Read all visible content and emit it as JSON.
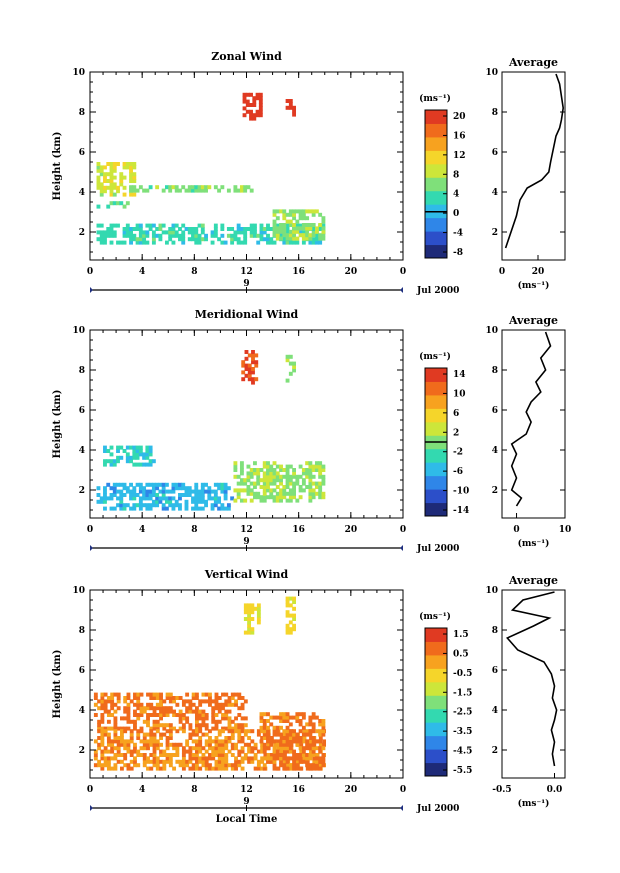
{
  "xlabel": "Local Time",
  "date_label": "Jul 2000",
  "day_tick": "9",
  "avg_title": "Average",
  "unit_label": "(ms⁻¹)",
  "colormap": [
    "#1e2a78",
    "#2c4fc9",
    "#2f86e8",
    "#2fbbe8",
    "#33d9b0",
    "#7fe07a",
    "#cde63a",
    "#f5d52a",
    "#f7a21f",
    "#f06b1c",
    "#e03a22"
  ],
  "chart_data": [
    {
      "type": "heatmap",
      "title": "Zonal Wind",
      "xlabel": "Local Time",
      "ylabel": "Height (km)",
      "xlim": [
        0,
        24
      ],
      "ylim": [
        0.6,
        10
      ],
      "x_ticks": [
        "0",
        "4",
        "8",
        "12",
        "16",
        "20",
        "0"
      ],
      "y_ticks": [
        "2",
        "4",
        "6",
        "8",
        "10"
      ],
      "colorbar": {
        "label": "(ms⁻¹)",
        "range": [
          -10,
          22
        ],
        "ticks": [
          "20",
          "16",
          "12",
          "8",
          "4",
          "0",
          "-4",
          "-8"
        ],
        "zero_line": 0
      },
      "regions": [
        {
          "x": [
            11.7,
            13.0
          ],
          "y": [
            7.6,
            8.9
          ],
          "value": 21
        },
        {
          "x": [
            15.0,
            15.6
          ],
          "y": [
            7.8,
            8.8
          ],
          "value": 21
        },
        {
          "x": [
            0.5,
            3.5
          ],
          "y": [
            3.8,
            5.4
          ],
          "value": 9
        },
        {
          "x": [
            3.0,
            12.5
          ],
          "y": [
            4.0,
            4.3
          ],
          "value": 6
        },
        {
          "x": [
            0.5,
            2.8
          ],
          "y": [
            3.2,
            3.5
          ],
          "value": 5
        },
        {
          "x": [
            0.5,
            18.0
          ],
          "y": [
            1.4,
            2.4
          ],
          "value": 3
        },
        {
          "x": [
            14.0,
            18.0
          ],
          "y": [
            1.6,
            3.0
          ],
          "value": 7
        }
      ],
      "average": {
        "xlim": [
          0,
          35
        ],
        "x_ticks": [
          "0",
          "20"
        ],
        "xlabel": "(ms⁻¹)",
        "profile": [
          [
            2,
            1.2
          ],
          [
            5,
            2.0
          ],
          [
            8,
            2.8
          ],
          [
            10,
            3.6
          ],
          [
            14,
            4.2
          ],
          [
            22,
            4.6
          ],
          [
            26,
            5.0
          ],
          [
            27,
            5.5
          ],
          [
            30,
            6.8
          ],
          [
            32,
            7.2
          ],
          [
            33,
            7.6
          ],
          [
            34,
            8.2
          ],
          [
            33,
            8.8
          ],
          [
            32,
            9.4
          ],
          [
            30,
            9.9
          ]
        ]
      }
    },
    {
      "type": "heatmap",
      "title": "Meridional Wind",
      "xlabel": "Local Time",
      "ylabel": "Height (km)",
      "xlim": [
        0,
        24
      ],
      "ylim": [
        0.6,
        10
      ],
      "x_ticks": [
        "0",
        "4",
        "8",
        "12",
        "16",
        "20",
        "0"
      ],
      "y_ticks": [
        "2",
        "4",
        "6",
        "8",
        "10"
      ],
      "colorbar": {
        "label": "(ms⁻¹)",
        "range": [
          -16,
          16
        ],
        "ticks": [
          "14",
          "10",
          "6",
          "2",
          "-2",
          "-6",
          "-10",
          "-14"
        ],
        "zero_line": 0
      },
      "regions": [
        {
          "x": [
            11.6,
            12.8
          ],
          "y": [
            7.3,
            9.0
          ],
          "value": 13
        },
        {
          "x": [
            15.0,
            15.6
          ],
          "y": [
            7.4,
            8.6
          ],
          "value": 1
        },
        {
          "x": [
            0.5,
            11.0
          ],
          "y": [
            1.0,
            2.2
          ],
          "value": -6
        },
        {
          "x": [
            1.0,
            5.0
          ],
          "y": [
            3.2,
            4.2
          ],
          "value": -4
        },
        {
          "x": [
            11.0,
            18.0
          ],
          "y": [
            1.4,
            3.4
          ],
          "value": 1
        }
      ],
      "average": {
        "xlim": [
          -3,
          10
        ],
        "x_ticks": [
          "0",
          "10"
        ],
        "xlabel": "(ms⁻¹)",
        "profile": [
          [
            0,
            1.2
          ],
          [
            1,
            1.6
          ],
          [
            -1,
            2.0
          ],
          [
            0,
            2.6
          ],
          [
            -1,
            3.2
          ],
          [
            0,
            3.8
          ],
          [
            -1,
            4.3
          ],
          [
            2,
            4.8
          ],
          [
            3,
            5.4
          ],
          [
            2,
            5.9
          ],
          [
            3,
            6.4
          ],
          [
            5,
            6.9
          ],
          [
            4,
            7.4
          ],
          [
            6,
            8.0
          ],
          [
            5,
            8.6
          ],
          [
            7,
            9.2
          ],
          [
            6,
            9.9
          ]
        ]
      }
    },
    {
      "type": "heatmap",
      "title": "Vertical Wind",
      "xlabel": "Local Time",
      "ylabel": "Height (km)",
      "xlim": [
        0,
        24
      ],
      "ylim": [
        0.6,
        10
      ],
      "x_ticks": [
        "0",
        "4",
        "8",
        "12",
        "16",
        "20",
        "0"
      ],
      "y_ticks": [
        "2",
        "4",
        "6",
        "8",
        "10"
      ],
      "colorbar": {
        "label": "(ms⁻¹)",
        "range": [
          -7,
          2
        ],
        "ticks": [
          "1.5",
          "0.5",
          "-0.5",
          "-1.5",
          "-2.5",
          "-3.5",
          "-4.5",
          "-5.5"
        ]
      },
      "regions": [
        {
          "x": [
            11.8,
            13.0
          ],
          "y": [
            7.8,
            9.3
          ],
          "value": -1.0
        },
        {
          "x": [
            15.0,
            15.6
          ],
          "y": [
            7.8,
            9.6
          ],
          "value": -1.0
        },
        {
          "x": [
            0.3,
            12.0
          ],
          "y": [
            3.0,
            4.8
          ],
          "value": 0.6
        },
        {
          "x": [
            0.3,
            18.0
          ],
          "y": [
            1.0,
            3.0
          ],
          "value": 0.3
        },
        {
          "x": [
            13.0,
            18.0
          ],
          "y": [
            1.0,
            3.8
          ],
          "value": 0.6
        }
      ],
      "average": {
        "xlim": [
          -0.5,
          0.1
        ],
        "x_ticks": [
          "-0.5",
          "0.0"
        ],
        "xlabel": "(ms⁻¹)",
        "profile": [
          [
            0,
            1.2
          ],
          [
            -0.02,
            1.8
          ],
          [
            0,
            2.4
          ],
          [
            -0.03,
            3.0
          ],
          [
            0,
            3.5
          ],
          [
            0.02,
            4.0
          ],
          [
            -0.02,
            4.6
          ],
          [
            0,
            5.2
          ],
          [
            -0.03,
            5.8
          ],
          [
            -0.1,
            6.4
          ],
          [
            -0.35,
            7.0
          ],
          [
            -0.45,
            7.6
          ],
          [
            -0.2,
            8.2
          ],
          [
            -0.05,
            8.6
          ],
          [
            -0.4,
            9.0
          ],
          [
            -0.3,
            9.5
          ],
          [
            0,
            9.9
          ]
        ]
      }
    }
  ]
}
